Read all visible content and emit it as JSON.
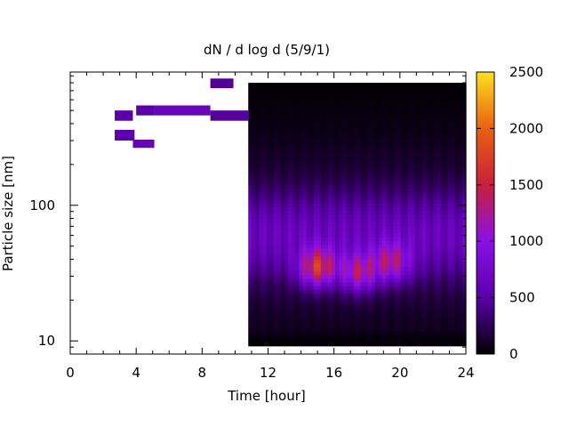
{
  "chart_data": {
    "type": "heatmap",
    "title": "dN / d log d (5/9/1)",
    "xlabel": "Time [hour]",
    "ylabel": "Particle size [nm]",
    "xlim": [
      0,
      24
    ],
    "ylim": [
      8,
      960
    ],
    "y_scale": "log",
    "x_ticks": [
      0,
      4,
      8,
      12,
      16,
      20,
      24
    ],
    "x_tick_labels": [
      "0",
      "4",
      "8",
      "12",
      "16",
      "20",
      "24"
    ],
    "y_ticks": [
      10,
      100
    ],
    "y_tick_labels": [
      "10",
      "100"
    ],
    "colorbar": {
      "min": 0,
      "max": 2500,
      "ticks": [
        0,
        500,
        1000,
        1500,
        2000,
        2500
      ],
      "tick_labels": [
        "0",
        "500",
        "1000",
        "1500",
        "2000",
        "2500"
      ],
      "palette": "black-purple-red-orange-yellow",
      "colors": [
        "#000000",
        "#5a00a8",
        "#8a10e8",
        "#c8203a",
        "#e86010",
        "#ffe020"
      ]
    },
    "isolated_cells": [
      {
        "x0": 2.7,
        "x1": 3.8,
        "size_low": 420,
        "size_high": 500,
        "value": 500
      },
      {
        "x0": 2.7,
        "x1": 3.9,
        "size_low": 300,
        "size_high": 360,
        "value": 520
      },
      {
        "x0": 3.8,
        "x1": 5.1,
        "size_low": 265,
        "size_high": 305,
        "value": 640
      },
      {
        "x0": 4.0,
        "x1": 5.1,
        "size_low": 460,
        "size_high": 545,
        "value": 500
      },
      {
        "x0": 5.1,
        "x1": 8.5,
        "size_low": 460,
        "size_high": 545,
        "value": 650
      },
      {
        "x0": 8.5,
        "x1": 10.8,
        "size_low": 420,
        "size_high": 500,
        "value": 470
      },
      {
        "x0": 8.5,
        "x1": 9.9,
        "size_low": 730,
        "size_high": 860,
        "value": 450
      }
    ],
    "continuous_region": {
      "x_start": 10.8,
      "x_end": 24,
      "size_min": 9.2,
      "size_max": 800,
      "background_value": 100,
      "features": [
        {
          "x": 15.0,
          "size": 35,
          "value": 2000
        },
        {
          "x": 17.5,
          "size": 32,
          "value": 1650
        },
        {
          "x": 19.5,
          "size": 38,
          "value": 1550
        }
      ]
    }
  }
}
